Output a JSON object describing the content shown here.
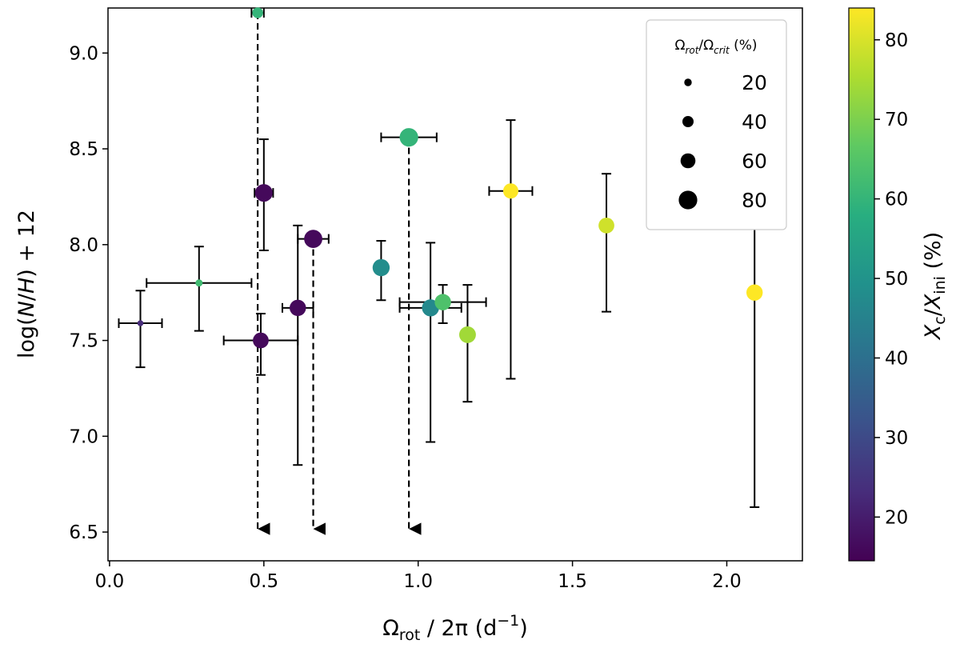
{
  "chart_data": {
    "type": "scatter",
    "xlabel": "Ωrot / 2π (d⁻¹)",
    "ylabel": "log(N/H) + 12",
    "xlim": [
      -0.005,
      2.245
    ],
    "ylim": [
      6.35,
      9.235
    ],
    "xticks": [
      0.0,
      0.5,
      1.0,
      1.5,
      2.0
    ],
    "xtick_labels": [
      "0.0",
      "0.5",
      "1.0",
      "1.5",
      "2.0"
    ],
    "yticks": [
      6.5,
      7.0,
      7.5,
      8.0,
      8.5,
      9.0
    ],
    "ytick_labels": [
      "6.5",
      "7.0",
      "7.5",
      "8.0",
      "8.5",
      "9.0"
    ],
    "colorbar": {
      "label": "Xc/Xini (%)",
      "range": [
        14.5,
        84
      ],
      "ticks": [
        20,
        30,
        40,
        50,
        60,
        70,
        80
      ],
      "tick_labels": [
        "20",
        "30",
        "40",
        "50",
        "60",
        "70",
        "80"
      ],
      "colormap": "viridis"
    },
    "size_legend": {
      "title": "Ωrot/Ωcrit (%)",
      "entries": [
        {
          "label": "20",
          "value": 20
        },
        {
          "label": "40",
          "value": 40
        },
        {
          "label": "60",
          "value": 60
        },
        {
          "label": "80",
          "value": 80
        }
      ]
    },
    "points": [
      {
        "x": 0.1,
        "y": 7.59,
        "x_err": [
          0.07,
          0.07
        ],
        "y_err": [
          0.23,
          0.17
        ],
        "color_value": 23,
        "size_value": 12,
        "upper_limit": false
      },
      {
        "x": 0.29,
        "y": 7.8,
        "x_err": [
          0.17,
          0.17
        ],
        "y_err": [
          0.25,
          0.19
        ],
        "color_value": 62,
        "size_value": 18,
        "upper_limit": false
      },
      {
        "x": 0.48,
        "y": 9.21,
        "x_err": [
          0.02,
          0.02
        ],
        "y_err": [
          0,
          0
        ],
        "color_value": 60,
        "size_value": 38,
        "upper_limit": true,
        "limit_to": 6.5
      },
      {
        "x": 0.5,
        "y": 8.27,
        "x_err": [
          0.03,
          0.03
        ],
        "y_err": [
          0.3,
          0.28
        ],
        "color_value": 16,
        "size_value": 75,
        "upper_limit": false
      },
      {
        "x": 0.49,
        "y": 7.5,
        "x_err": [
          0.12,
          0.12
        ],
        "y_err": [
          0.18,
          0.14
        ],
        "color_value": 16,
        "size_value": 65,
        "upper_limit": false
      },
      {
        "x": 0.61,
        "y": 7.67,
        "x_err": [
          0.05,
          0.05
        ],
        "y_err": [
          0.82,
          0.43
        ],
        "color_value": 16,
        "size_value": 68,
        "upper_limit": false
      },
      {
        "x": 0.66,
        "y": 8.03,
        "x_err": [
          0.05,
          0.05
        ],
        "y_err": [
          0,
          0
        ],
        "color_value": 16,
        "size_value": 78,
        "upper_limit": true,
        "limit_to": 6.5
      },
      {
        "x": 0.88,
        "y": 7.88,
        "x_err": [
          0,
          0
        ],
        "y_err": [
          0.17,
          0.14
        ],
        "color_value": 48,
        "size_value": 72,
        "upper_limit": false
      },
      {
        "x": 0.97,
        "y": 8.56,
        "x_err": [
          0.09,
          0.09
        ],
        "y_err": [
          0,
          0
        ],
        "color_value": 60,
        "size_value": 80,
        "upper_limit": true,
        "limit_to": 6.5
      },
      {
        "x": 1.04,
        "y": 7.67,
        "x_err": [
          0.1,
          0.1
        ],
        "y_err": [
          0.7,
          0.34
        ],
        "color_value": 47,
        "size_value": 72,
        "upper_limit": false
      },
      {
        "x": 1.08,
        "y": 7.7,
        "x_err": [
          0.14,
          0.14
        ],
        "y_err": [
          0.11,
          0.09
        ],
        "color_value": 64,
        "size_value": 68,
        "upper_limit": false
      },
      {
        "x": 1.16,
        "y": 7.53,
        "x_err": [
          0,
          0
        ],
        "y_err": [
          0.35,
          0.26
        ],
        "color_value": 74,
        "size_value": 70,
        "upper_limit": false
      },
      {
        "x": 1.3,
        "y": 8.28,
        "x_err": [
          0.07,
          0.07
        ],
        "y_err": [
          0.98,
          0.37
        ],
        "color_value": 84,
        "size_value": 62,
        "upper_limit": false
      },
      {
        "x": 1.61,
        "y": 8.1,
        "x_err": [
          0,
          0
        ],
        "y_err": [
          0.45,
          0.27
        ],
        "color_value": 79,
        "size_value": 65,
        "upper_limit": false
      },
      {
        "x": 2.09,
        "y": 7.75,
        "x_err": [
          0,
          0
        ],
        "y_err": [
          1.12,
          0.37
        ],
        "color_value": 84,
        "size_value": 68,
        "upper_limit": false
      }
    ]
  }
}
